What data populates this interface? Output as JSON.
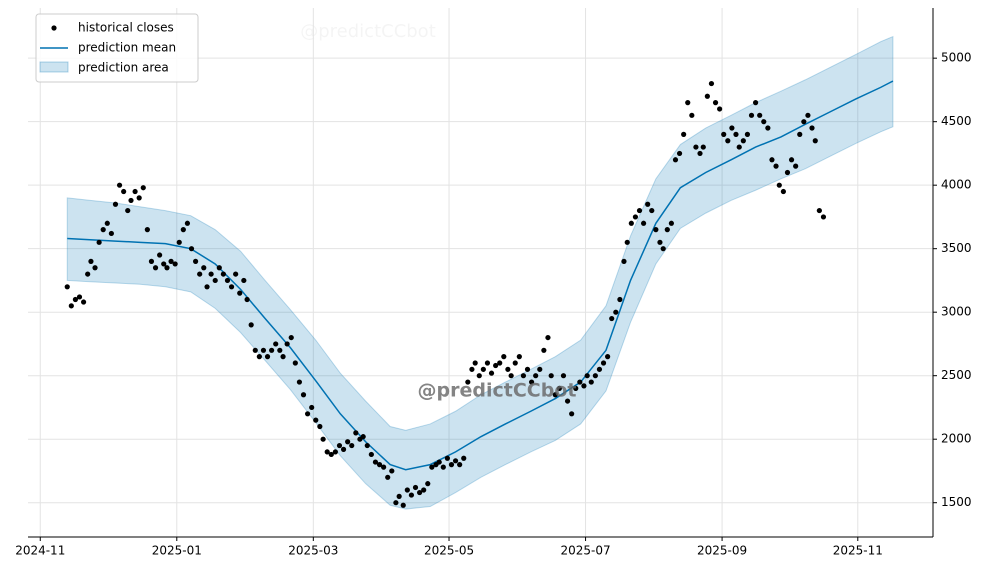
{
  "chart_data": {
    "type": "forecast",
    "annotations": [
      "@predictCCbot",
      "@predictCCbot"
    ],
    "legend": "upper left",
    "grid": true,
    "xlim": [
      2024.818,
      2025.925
    ],
    "xticks": [
      {
        "value": 2024.833,
        "label": "2024-11"
      },
      {
        "value": 2025.0,
        "label": "2025-01"
      },
      {
        "value": 2025.167,
        "label": "2025-03"
      },
      {
        "value": 2025.333,
        "label": "2025-05"
      },
      {
        "value": 2025.5,
        "label": "2025-07"
      },
      {
        "value": 2025.667,
        "label": "2025-09"
      },
      {
        "value": 2025.833,
        "label": "2025-11"
      }
    ],
    "ylim": [
      1230,
      5395
    ],
    "yticks": [
      1500,
      2000,
      2500,
      3000,
      3500,
      4000,
      4500,
      5000
    ],
    "closes": {
      "name": "historical closes",
      "color": "#000000",
      "x": [
        2024.866,
        2024.871,
        2024.876,
        2024.881,
        2024.886,
        2024.891,
        2024.895,
        2024.9,
        2024.905,
        2024.91,
        2024.915,
        2024.92,
        2024.925,
        2024.93,
        2024.935,
        2024.94,
        2024.944,
        2024.949,
        2024.954,
        2024.959,
        2024.964,
        2024.969,
        2024.974,
        2024.979,
        2024.984,
        2024.988,
        2024.993,
        2024.998,
        2025.003,
        2025.008,
        2025.013,
        2025.018,
        2025.023,
        2025.028,
        2025.033,
        2025.037,
        2025.042,
        2025.047,
        2025.052,
        2025.057,
        2025.062,
        2025.067,
        2025.072,
        2025.077,
        2025.082,
        2025.086,
        2025.091,
        2025.096,
        2025.101,
        2025.106,
        2025.111,
        2025.116,
        2025.121,
        2025.126,
        2025.13,
        2025.135,
        2025.14,
        2025.145,
        2025.15,
        2025.155,
        2025.16,
        2025.165,
        2025.17,
        2025.175,
        2025.179,
        2025.184,
        2025.189,
        2025.194,
        2025.199,
        2025.204,
        2025.209,
        2025.214,
        2025.219,
        2025.224,
        2025.228,
        2025.233,
        2025.238,
        2025.243,
        2025.248,
        2025.253,
        2025.258,
        2025.263,
        2025.268,
        2025.272,
        2025.277,
        2025.282,
        2025.287,
        2025.292,
        2025.297,
        2025.302,
        2025.307,
        2025.312,
        2025.317,
        2025.321,
        2025.326,
        2025.331,
        2025.336,
        2025.341,
        2025.346,
        2025.351,
        2025.356,
        2025.361,
        2025.365,
        2025.37,
        2025.375,
        2025.38,
        2025.385,
        2025.39,
        2025.395,
        2025.4,
        2025.405,
        2025.409,
        2025.414,
        2025.419,
        2025.424,
        2025.429,
        2025.434,
        2025.439,
        2025.444,
        2025.449,
        2025.454,
        2025.458,
        2025.463,
        2025.468,
        2025.473,
        2025.478,
        2025.483,
        2025.488,
        2025.493,
        2025.498,
        2025.502,
        2025.507,
        2025.512,
        2025.517,
        2025.522,
        2025.527,
        2025.532,
        2025.537,
        2025.542,
        2025.547,
        2025.551,
        2025.556,
        2025.561,
        2025.566,
        2025.571,
        2025.576,
        2025.581,
        2025.586,
        2025.591,
        2025.595,
        2025.6,
        2025.605,
        2025.61,
        2025.615,
        2025.62,
        2025.625,
        2025.63,
        2025.635,
        2025.64,
        2025.644,
        2025.649,
        2025.654,
        2025.659,
        2025.664,
        2025.669,
        2025.674,
        2025.679,
        2025.684,
        2025.688,
        2025.693,
        2025.698,
        2025.703,
        2025.708,
        2025.713,
        2025.718,
        2025.723,
        2025.728,
        2025.733,
        2025.737,
        2025.742,
        2025.747,
        2025.752,
        2025.757,
        2025.762,
        2025.767,
        2025.772,
        2025.777,
        2025.781,
        2025.786,
        2025.791
      ],
      "values": [
        3200,
        3050,
        3100,
        3120,
        3080,
        3300,
        3400,
        3350,
        3550,
        3650,
        3700,
        3620,
        3850,
        4000,
        3950,
        3800,
        3880,
        3950,
        3900,
        3980,
        3650,
        3400,
        3350,
        3450,
        3380,
        3350,
        3400,
        3380,
        3550,
        3650,
        3700,
        3500,
        3400,
        3300,
        3350,
        3200,
        3300,
        3250,
        3350,
        3300,
        3250,
        3200,
        3300,
        3150,
        3250,
        3100,
        2900,
        2700,
        2650,
        2700,
        2650,
        2700,
        2750,
        2700,
        2650,
        2750,
        2800,
        2600,
        2450,
        2350,
        2200,
        2250,
        2150,
        2100,
        2000,
        1900,
        1880,
        1900,
        1950,
        1920,
        1980,
        1950,
        2050,
        2000,
        2020,
        1950,
        1880,
        1820,
        1800,
        1780,
        1700,
        1750,
        1500,
        1550,
        1480,
        1600,
        1560,
        1620,
        1580,
        1600,
        1650,
        1780,
        1800,
        1820,
        1780,
        1850,
        1800,
        1830,
        1800,
        1850,
        2450,
        2550,
        2600,
        2500,
        2550,
        2600,
        2520,
        2580,
        2600,
        2650,
        2550,
        2500,
        2600,
        2650,
        2500,
        2550,
        2450,
        2500,
        2550,
        2700,
        2800,
        2500,
        2350,
        2400,
        2500,
        2300,
        2200,
        2400,
        2450,
        2420,
        2500,
        2450,
        2500,
        2550,
        2600,
        2650,
        2950,
        3000,
        3100,
        3400,
        3550,
        3700,
        3750,
        3800,
        3700,
        3850,
        3800,
        3650,
        3550,
        3500,
        3650,
        3700,
        4200,
        4250,
        4400,
        4650,
        4550,
        4300,
        4250,
        4300,
        4700,
        4800,
        4650,
        4600,
        4400,
        4350,
        4450,
        4400,
        4300,
        4350,
        4400,
        4550,
        4650,
        4550,
        4500,
        4450,
        4200,
        4150,
        4000,
        3950,
        4100,
        4200,
        4150,
        4400,
        4500,
        4550,
        4450,
        4350,
        3800,
        3750
      ]
    },
    "forecast": {
      "x": [
        2024.866,
        2024.894,
        2024.925,
        2024.955,
        2024.986,
        2025.017,
        2025.047,
        2025.078,
        2025.108,
        2025.139,
        2025.17,
        2025.2,
        2025.231,
        2025.261,
        2025.28,
        2025.31,
        2025.341,
        2025.372,
        2025.402,
        2025.433,
        2025.463,
        2025.494,
        2025.525,
        2025.555,
        2025.586,
        2025.616,
        2025.647,
        2025.678,
        2025.708,
        2025.739,
        2025.769,
        2025.8,
        2025.831,
        2025.861,
        2025.876
      ],
      "mean": {
        "name": "prediction mean",
        "color": "#0072B2",
        "values": [
          3580,
          3570,
          3560,
          3550,
          3540,
          3500,
          3380,
          3180,
          2950,
          2720,
          2460,
          2200,
          1980,
          1800,
          1760,
          1800,
          1900,
          2020,
          2120,
          2220,
          2320,
          2450,
          2700,
          3250,
          3700,
          3980,
          4100,
          4200,
          4300,
          4380,
          4480,
          4580,
          4680,
          4770,
          4820
        ]
      },
      "area": {
        "name": "prediction area",
        "color": "#0072B2",
        "upper": [
          3900,
          3880,
          3860,
          3830,
          3800,
          3760,
          3650,
          3480,
          3250,
          3020,
          2780,
          2520,
          2300,
          2100,
          2070,
          2120,
          2220,
          2350,
          2450,
          2550,
          2650,
          2780,
          3050,
          3600,
          4050,
          4320,
          4450,
          4550,
          4650,
          4740,
          4830,
          4930,
          5030,
          5130,
          5170
        ],
        "lower": [
          3250,
          3240,
          3230,
          3220,
          3200,
          3160,
          3030,
          2840,
          2620,
          2390,
          2130,
          1870,
          1650,
          1480,
          1450,
          1470,
          1580,
          1700,
          1800,
          1900,
          1990,
          2120,
          2380,
          2920,
          3380,
          3660,
          3780,
          3880,
          3960,
          4050,
          4130,
          4230,
          4330,
          4420,
          4460
        ]
      }
    }
  }
}
